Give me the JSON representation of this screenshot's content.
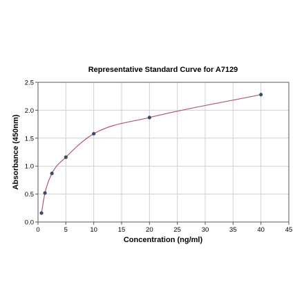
{
  "chart_data": {
    "type": "scatter",
    "title": "Representative Standard Curve for A7129",
    "xlabel": "Concentration (ng/ml)",
    "ylabel": "Absorbance (450nm)",
    "xlim": [
      0,
      45
    ],
    "ylim": [
      0,
      2.5
    ],
    "x_ticks": [
      "0",
      "5",
      "10",
      "15",
      "20",
      "25",
      "30",
      "35",
      "40",
      "45"
    ],
    "y_ticks": [
      "0.0",
      "0.5",
      "1.0",
      "1.5",
      "2.0",
      "2.5"
    ],
    "grid": true,
    "legend": "none",
    "series": [
      {
        "x": [
          0.625,
          1.25,
          2.5,
          5,
          10,
          20,
          40
        ],
        "y": [
          0.16,
          0.52,
          0.87,
          1.16,
          1.58,
          1.87,
          2.28
        ],
        "marker_color": "#3a4a6b",
        "fit_line_color": "#b5576b"
      }
    ]
  }
}
